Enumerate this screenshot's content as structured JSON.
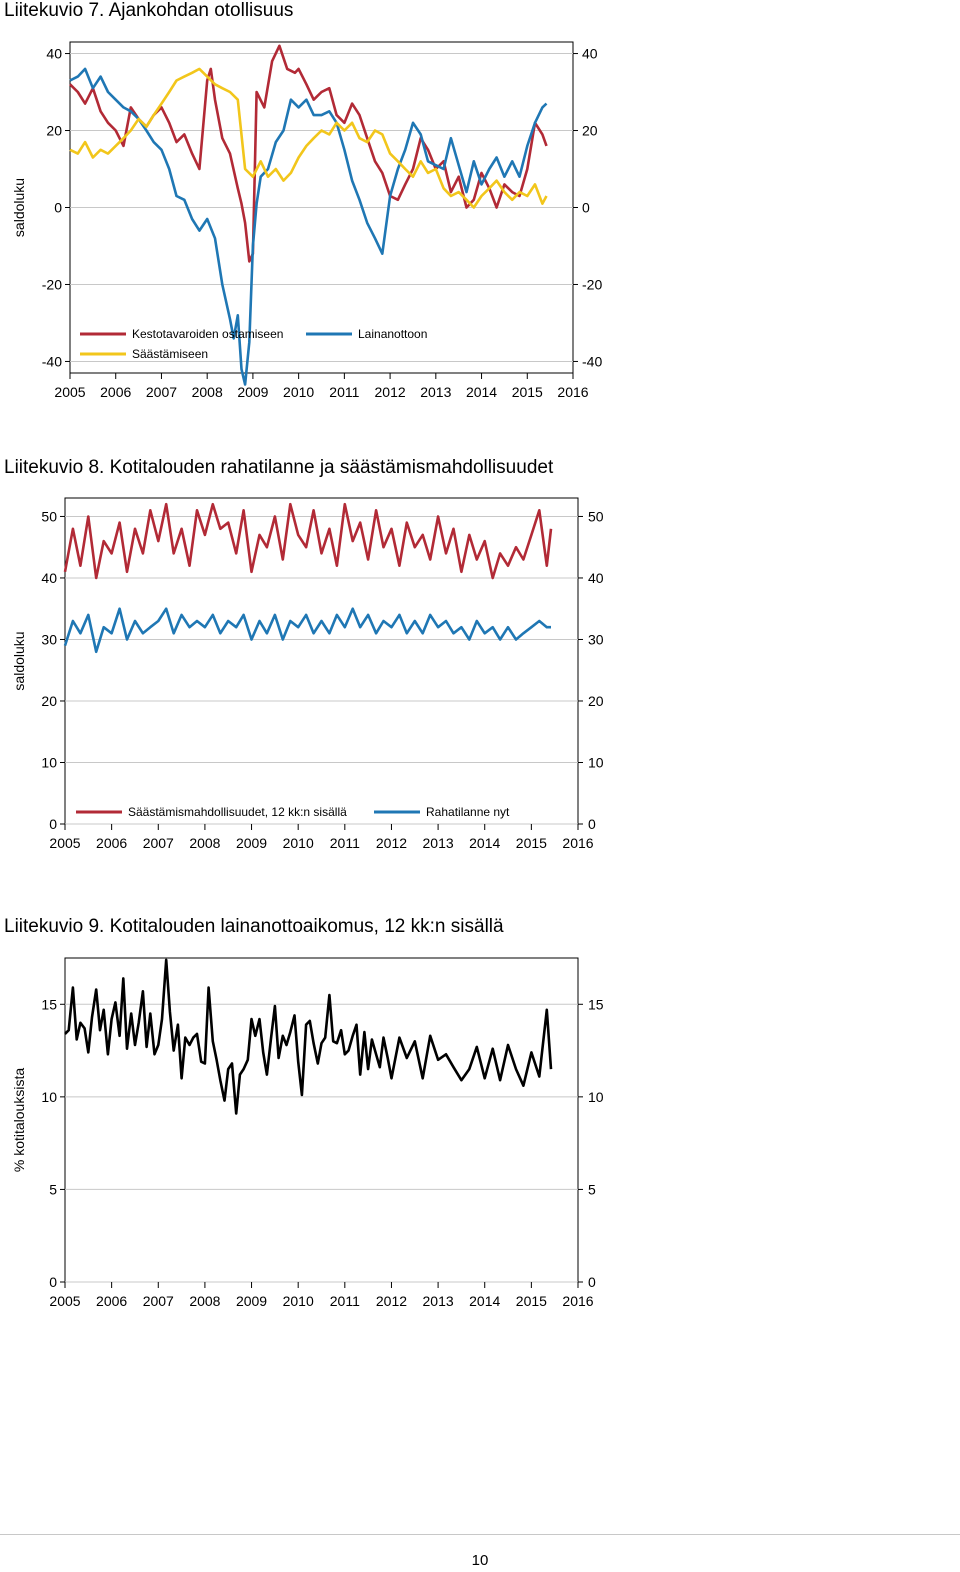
{
  "figures": [
    {
      "title": "Liitekuvio 7. Ajankohdan otollisuus"
    },
    {
      "title": "Liitekuvio 8. Kotitalouden rahatilanne ja säästämismahdollisuudet"
    },
    {
      "title": "Liitekuvio 9. Kotitalouden lainanottoaikomus, 12 kk:n sisällä"
    }
  ],
  "page": {
    "number": "10"
  },
  "colors": {
    "red": "#b22a36",
    "blue": "#1f77b4",
    "yellow": "#f2c61b",
    "black": "#000000",
    "grid": "#c8c8c8"
  },
  "chart_data": [
    {
      "type": "line",
      "title": "",
      "ylabel": "saldoluku",
      "xlabel": "",
      "xlim": [
        2005,
        2016
      ],
      "ylim": [
        -43,
        43
      ],
      "yticks": [
        40,
        20,
        0,
        -20,
        -40
      ],
      "xticks": [
        2005,
        2006,
        2007,
        2008,
        2009,
        2010,
        2011,
        2012,
        2013,
        2014,
        2015,
        2016
      ],
      "grid": true,
      "legend": "bottom-inside",
      "series": [
        {
          "name": "Kestotavaroiden ostamiseen",
          "color": "red",
          "x": [
            2005.0,
            2005.17,
            2005.33,
            2005.5,
            2005.67,
            2005.83,
            2006.0,
            2006.17,
            2006.33,
            2006.5,
            2006.67,
            2006.83,
            2007.0,
            2007.17,
            2007.33,
            2007.5,
            2007.67,
            2007.83,
            2008.0,
            2008.08,
            2008.17,
            2008.33,
            2008.5,
            2008.67,
            2008.75,
            2008.83,
            2008.92,
            2009.0,
            2009.08,
            2009.25,
            2009.42,
            2009.58,
            2009.75,
            2009.92,
            2010.0,
            2010.17,
            2010.33,
            2010.5,
            2010.67,
            2010.83,
            2011.0,
            2011.17,
            2011.33,
            2011.5,
            2011.67,
            2011.83,
            2012.0,
            2012.17,
            2012.33,
            2012.5,
            2012.67,
            2012.83,
            2013.0,
            2013.17,
            2013.33,
            2013.5,
            2013.67,
            2013.83,
            2014.0,
            2014.17,
            2014.33,
            2014.5,
            2014.67,
            2014.83,
            2015.0,
            2015.17,
            2015.33,
            2015.42
          ],
          "y": [
            32,
            30,
            27,
            31,
            25,
            22,
            20,
            16,
            26,
            23,
            21,
            24,
            26,
            22,
            17,
            19,
            14,
            10,
            33,
            36,
            28,
            18,
            14,
            5,
            1,
            -4,
            -14,
            -12,
            30,
            26,
            38,
            42,
            36,
            35,
            36,
            32,
            28,
            30,
            31,
            24,
            22,
            27,
            24,
            18,
            12,
            9,
            3,
            2,
            6,
            10,
            18,
            15,
            10,
            12,
            4,
            8,
            0,
            2,
            9,
            5,
            0,
            6,
            4,
            3,
            10,
            22,
            19,
            16
          ]
        },
        {
          "name": "Lainanottoon",
          "color": "blue",
          "x": [
            2005.0,
            2005.17,
            2005.33,
            2005.5,
            2005.67,
            2005.83,
            2006.0,
            2006.17,
            2006.33,
            2006.5,
            2006.67,
            2006.83,
            2007.0,
            2007.17,
            2007.33,
            2007.5,
            2007.67,
            2007.83,
            2008.0,
            2008.17,
            2008.33,
            2008.5,
            2008.58,
            2008.67,
            2008.75,
            2008.83,
            2008.92,
            2009.0,
            2009.08,
            2009.17,
            2009.33,
            2009.5,
            2009.67,
            2009.83,
            2010.0,
            2010.17,
            2010.33,
            2010.5,
            2010.67,
            2010.83,
            2011.0,
            2011.17,
            2011.33,
            2011.5,
            2011.67,
            2011.83,
            2012.0,
            2012.17,
            2012.33,
            2012.5,
            2012.67,
            2012.83,
            2013.0,
            2013.17,
            2013.33,
            2013.5,
            2013.67,
            2013.83,
            2014.0,
            2014.17,
            2014.33,
            2014.5,
            2014.67,
            2014.83,
            2015.0,
            2015.17,
            2015.33,
            2015.42
          ],
          "y": [
            33,
            34,
            36,
            31,
            34,
            30,
            28,
            26,
            25,
            23,
            20,
            17,
            15,
            10,
            3,
            2,
            -3,
            -6,
            -3,
            -8,
            -20,
            -29,
            -34,
            -28,
            -42,
            -46,
            -35,
            -10,
            1,
            8,
            10,
            17,
            20,
            28,
            26,
            28,
            24,
            24,
            25,
            22,
            15,
            7,
            2,
            -4,
            -8,
            -12,
            3,
            10,
            15,
            22,
            19,
            12,
            11,
            10,
            18,
            11,
            4,
            12,
            6,
            10,
            13,
            8,
            12,
            8,
            16,
            22,
            26,
            27
          ]
        },
        {
          "name": "Säästämiseen",
          "color": "yellow",
          "x": [
            2005.0,
            2005.17,
            2005.33,
            2005.5,
            2005.67,
            2005.83,
            2006.0,
            2006.17,
            2006.33,
            2006.5,
            2006.67,
            2006.83,
            2007.0,
            2007.17,
            2007.33,
            2007.5,
            2007.67,
            2007.83,
            2008.0,
            2008.17,
            2008.33,
            2008.5,
            2008.67,
            2008.83,
            2009.0,
            2009.17,
            2009.33,
            2009.5,
            2009.67,
            2009.83,
            2010.0,
            2010.17,
            2010.33,
            2010.5,
            2010.67,
            2010.83,
            2011.0,
            2011.17,
            2011.33,
            2011.5,
            2011.67,
            2011.83,
            2012.0,
            2012.17,
            2012.33,
            2012.5,
            2012.67,
            2012.83,
            2013.0,
            2013.17,
            2013.33,
            2013.5,
            2013.67,
            2013.83,
            2014.0,
            2014.17,
            2014.33,
            2014.5,
            2014.67,
            2014.83,
            2015.0,
            2015.17,
            2015.33,
            2015.42
          ],
          "y": [
            15,
            14,
            17,
            13,
            15,
            14,
            16,
            18,
            20,
            23,
            21,
            24,
            27,
            30,
            33,
            34,
            35,
            36,
            34,
            32,
            31,
            30,
            28,
            10,
            8,
            12,
            8,
            10,
            7,
            9,
            13,
            16,
            18,
            20,
            19,
            22,
            20,
            22,
            18,
            17,
            20,
            19,
            14,
            12,
            10,
            8,
            12,
            9,
            10,
            5,
            3,
            4,
            2,
            0,
            3,
            5,
            7,
            4,
            2,
            4,
            3,
            6,
            1,
            3
          ]
        }
      ]
    },
    {
      "type": "line",
      "title": "",
      "ylabel": "saldoluku",
      "xlabel": "",
      "xlim": [
        2005,
        2016
      ],
      "ylim": [
        0,
        53
      ],
      "yticks": [
        50,
        40,
        30,
        20,
        10,
        0
      ],
      "xticks": [
        2005,
        2006,
        2007,
        2008,
        2009,
        2010,
        2011,
        2012,
        2013,
        2014,
        2015,
        2016
      ],
      "grid": true,
      "legend": "bottom-inside",
      "series": [
        {
          "name": "Säästämismahdollisuudet, 12 kk:n sisällä",
          "color": "red",
          "x": [
            2005.0,
            2005.17,
            2005.33,
            2005.5,
            2005.67,
            2005.83,
            2006.0,
            2006.17,
            2006.33,
            2006.5,
            2006.67,
            2006.83,
            2007.0,
            2007.17,
            2007.33,
            2007.5,
            2007.67,
            2007.83,
            2008.0,
            2008.17,
            2008.33,
            2008.5,
            2008.67,
            2008.83,
            2009.0,
            2009.17,
            2009.33,
            2009.5,
            2009.67,
            2009.83,
            2010.0,
            2010.17,
            2010.33,
            2010.5,
            2010.67,
            2010.83,
            2011.0,
            2011.17,
            2011.33,
            2011.5,
            2011.67,
            2011.83,
            2012.0,
            2012.17,
            2012.33,
            2012.5,
            2012.67,
            2012.83,
            2013.0,
            2013.17,
            2013.33,
            2013.5,
            2013.67,
            2013.83,
            2014.0,
            2014.17,
            2014.33,
            2014.5,
            2014.67,
            2014.83,
            2015.0,
            2015.17,
            2015.33,
            2015.42
          ],
          "y": [
            41,
            48,
            42,
            50,
            40,
            46,
            44,
            49,
            41,
            48,
            44,
            51,
            46,
            52,
            44,
            48,
            42,
            51,
            47,
            52,
            48,
            49,
            44,
            51,
            41,
            47,
            45,
            50,
            43,
            52,
            47,
            45,
            51,
            44,
            48,
            42,
            52,
            46,
            49,
            43,
            51,
            45,
            48,
            42,
            49,
            45,
            47,
            43,
            50,
            44,
            48,
            41,
            47,
            43,
            46,
            40,
            44,
            42,
            45,
            43,
            47,
            51,
            42,
            48
          ]
        },
        {
          "name": "Rahatilanne nyt",
          "color": "blue",
          "x": [
            2005.0,
            2005.17,
            2005.33,
            2005.5,
            2005.67,
            2005.83,
            2006.0,
            2006.17,
            2006.33,
            2006.5,
            2006.67,
            2006.83,
            2007.0,
            2007.17,
            2007.33,
            2007.5,
            2007.67,
            2007.83,
            2008.0,
            2008.17,
            2008.33,
            2008.5,
            2008.67,
            2008.83,
            2009.0,
            2009.17,
            2009.33,
            2009.5,
            2009.67,
            2009.83,
            2010.0,
            2010.17,
            2010.33,
            2010.5,
            2010.67,
            2010.83,
            2011.0,
            2011.17,
            2011.33,
            2011.5,
            2011.67,
            2011.83,
            2012.0,
            2012.17,
            2012.33,
            2012.5,
            2012.67,
            2012.83,
            2013.0,
            2013.17,
            2013.33,
            2013.5,
            2013.67,
            2013.83,
            2014.0,
            2014.17,
            2014.33,
            2014.5,
            2014.67,
            2014.83,
            2015.0,
            2015.17,
            2015.33,
            2015.42
          ],
          "y": [
            29,
            33,
            31,
            34,
            28,
            32,
            31,
            35,
            30,
            33,
            31,
            32,
            33,
            35,
            31,
            34,
            32,
            33,
            32,
            34,
            31,
            33,
            32,
            34,
            30,
            33,
            31,
            34,
            30,
            33,
            32,
            34,
            31,
            33,
            31,
            34,
            32,
            35,
            32,
            34,
            31,
            33,
            32,
            34,
            31,
            33,
            31,
            34,
            32,
            33,
            31,
            32,
            30,
            33,
            31,
            32,
            30,
            32,
            30,
            31,
            32,
            33,
            32,
            32
          ]
        }
      ]
    },
    {
      "type": "line",
      "title": "",
      "ylabel": "% kotitalouksista",
      "xlabel": "",
      "xlim": [
        2005,
        2016
      ],
      "ylim": [
        0,
        17.5
      ],
      "yticks": [
        15,
        10,
        5,
        0
      ],
      "xticks": [
        2005,
        2006,
        2007,
        2008,
        2009,
        2010,
        2011,
        2012,
        2013,
        2014,
        2015,
        2016
      ],
      "grid": true,
      "legend": "none",
      "series": [
        {
          "name": "",
          "color": "black",
          "x": [
            2005.0,
            2005.08,
            2005.17,
            2005.25,
            2005.33,
            2005.42,
            2005.5,
            2005.58,
            2005.67,
            2005.75,
            2005.83,
            2005.92,
            2006.0,
            2006.08,
            2006.17,
            2006.25,
            2006.33,
            2006.42,
            2006.5,
            2006.58,
            2006.67,
            2006.75,
            2006.83,
            2006.92,
            2007.0,
            2007.08,
            2007.17,
            2007.25,
            2007.33,
            2007.42,
            2007.5,
            2007.58,
            2007.67,
            2007.75,
            2007.83,
            2007.92,
            2008.0,
            2008.08,
            2008.17,
            2008.25,
            2008.33,
            2008.42,
            2008.5,
            2008.58,
            2008.67,
            2008.75,
            2008.83,
            2008.92,
            2009.0,
            2009.08,
            2009.17,
            2009.25,
            2009.33,
            2009.42,
            2009.5,
            2009.58,
            2009.67,
            2009.75,
            2009.83,
            2009.92,
            2010.0,
            2010.08,
            2010.17,
            2010.25,
            2010.33,
            2010.42,
            2010.5,
            2010.58,
            2010.67,
            2010.75,
            2010.83,
            2010.92,
            2011.0,
            2011.08,
            2011.17,
            2011.25,
            2011.33,
            2011.42,
            2011.5,
            2011.58,
            2011.67,
            2011.75,
            2011.83,
            2011.92,
            2012.0,
            2012.17,
            2012.33,
            2012.5,
            2012.67,
            2012.83,
            2013.0,
            2013.17,
            2013.33,
            2013.5,
            2013.67,
            2013.83,
            2014.0,
            2014.17,
            2014.33,
            2014.5,
            2014.67,
            2014.83,
            2015.0,
            2015.17,
            2015.33,
            2015.42
          ],
          "y": [
            13.4,
            13.6,
            15.9,
            13.1,
            14.0,
            13.7,
            12.4,
            14.3,
            15.8,
            13.6,
            14.7,
            12.3,
            14.2,
            15.1,
            13.3,
            16.4,
            12.6,
            14.5,
            12.8,
            14.0,
            15.7,
            12.7,
            14.5,
            12.3,
            12.8,
            14.2,
            17.4,
            14.6,
            12.5,
            13.9,
            11.0,
            13.2,
            12.8,
            13.2,
            13.4,
            11.9,
            11.8,
            15.9,
            13.0,
            12.0,
            10.9,
            9.8,
            11.5,
            11.8,
            9.1,
            11.2,
            11.5,
            12.0,
            14.2,
            13.3,
            14.2,
            12.4,
            11.2,
            13.2,
            14.9,
            12.1,
            13.3,
            12.8,
            13.5,
            14.4,
            11.9,
            10.1,
            13.9,
            14.1,
            12.9,
            11.8,
            12.9,
            13.2,
            15.5,
            13.0,
            12.9,
            13.6,
            12.3,
            12.5,
            13.3,
            13.9,
            11.2,
            13.5,
            11.5,
            13.1,
            12.3,
            11.6,
            13.2,
            12.1,
            11.0,
            13.2,
            12.1,
            13.0,
            11.0,
            13.3,
            12.0,
            12.3,
            11.6,
            10.9,
            11.5,
            12.7,
            11.0,
            12.6,
            10.9,
            12.8,
            11.5,
            10.6,
            12.4,
            11.1,
            14.7,
            11.5
          ]
        }
      ]
    }
  ]
}
